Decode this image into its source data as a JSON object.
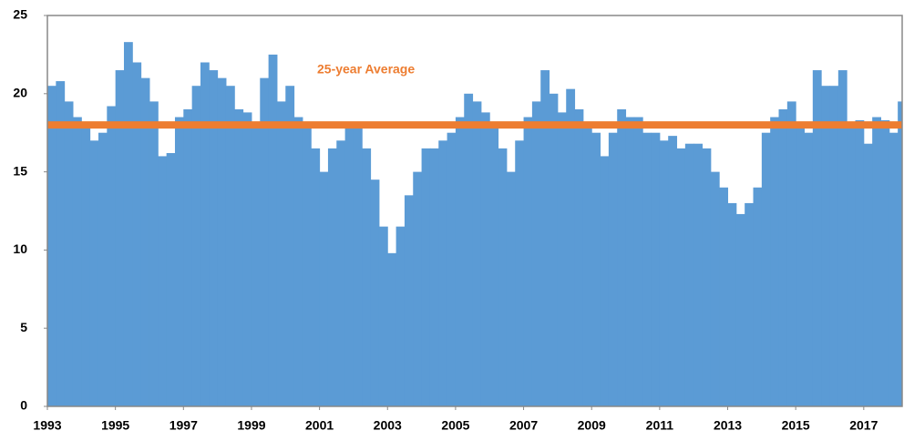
{
  "chart_data": {
    "type": "bar",
    "x": [
      1993,
      1993.25,
      1993.5,
      1993.75,
      1994,
      1994.25,
      1994.5,
      1994.75,
      1995,
      1995.25,
      1995.5,
      1995.75,
      1996,
      1996.25,
      1996.5,
      1996.75,
      1997,
      1997.25,
      1997.5,
      1997.75,
      1998,
      1998.25,
      1998.5,
      1998.75,
      1999,
      1999.25,
      1999.5,
      1999.75,
      2000,
      2000.25,
      2000.5,
      2000.75,
      2001,
      2001.25,
      2001.5,
      2001.75,
      2002,
      2002.25,
      2002.5,
      2002.75,
      2003,
      2003.25,
      2003.5,
      2003.75,
      2004,
      2004.25,
      2004.5,
      2004.75,
      2005,
      2005.25,
      2005.5,
      2005.75,
      2006,
      2006.25,
      2006.5,
      2006.75,
      2007,
      2007.25,
      2007.5,
      2007.75,
      2008,
      2008.25,
      2008.5,
      2008.75,
      2009,
      2009.25,
      2009.5,
      2009.75,
      2010,
      2010.25,
      2010.5,
      2010.75,
      2011,
      2011.25,
      2011.5,
      2011.75,
      2012,
      2012.25,
      2012.5,
      2012.75,
      2013,
      2013.25,
      2013.5,
      2013.75,
      2014,
      2014.25,
      2014.5,
      2014.75,
      2015,
      2015.25,
      2015.5,
      2015.75,
      2016,
      2016.25,
      2016.5,
      2016.75,
      2017,
      2017.25,
      2017.5,
      2017.75,
      2018
    ],
    "values": [
      20.5,
      20.8,
      19.5,
      18.5,
      17.8,
      17.0,
      17.5,
      19.2,
      21.5,
      23.3,
      22.0,
      21.0,
      19.5,
      16.0,
      16.2,
      18.5,
      19.0,
      20.5,
      22.0,
      21.5,
      21.0,
      20.5,
      19.0,
      18.8,
      18.0,
      21.0,
      22.5,
      19.5,
      20.5,
      18.5,
      17.8,
      16.5,
      15.0,
      16.5,
      17.0,
      17.8,
      18.0,
      16.5,
      14.5,
      11.5,
      9.8,
      11.5,
      13.5,
      15.0,
      16.5,
      16.5,
      17.0,
      17.5,
      18.5,
      20.0,
      19.5,
      18.8,
      18.0,
      16.5,
      15.0,
      17.0,
      18.5,
      19.5,
      21.5,
      20.0,
      18.8,
      20.3,
      19.0,
      18.0,
      17.5,
      16.0,
      17.5,
      19.0,
      18.5,
      18.5,
      17.5,
      17.5,
      17.0,
      17.3,
      16.5,
      16.8,
      16.8,
      16.5,
      15.0,
      14.0,
      13.0,
      12.3,
      13.0,
      14.0,
      17.5,
      18.5,
      19.0,
      19.5,
      18.0,
      17.5,
      21.5,
      20.5,
      20.5,
      21.5,
      18.0,
      18.3,
      16.8,
      18.5,
      18.3,
      17.5,
      19.5
    ],
    "bar_width": 0.25,
    "color": "#5b9bd5",
    "average": 18,
    "average_label": "25-year Average",
    "average_color": "#ed7d31",
    "xlim": [
      1993,
      2018.13
    ],
    "xticks": [
      1993,
      1995,
      1997,
      1999,
      2001,
      2003,
      2005,
      2007,
      2009,
      2011,
      2013,
      2015,
      2017
    ],
    "ylim": [
      0,
      25
    ],
    "yticks": [
      0,
      5,
      10,
      15,
      20,
      25
    ],
    "grid": false
  }
}
